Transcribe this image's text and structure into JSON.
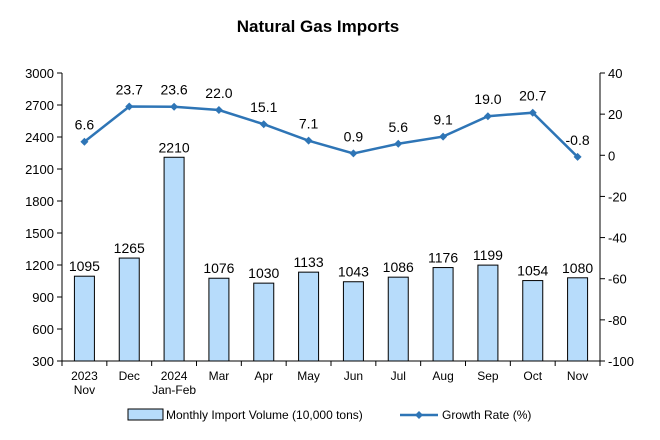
{
  "chart_data": {
    "type": "bar+line",
    "title": "Natural Gas Imports",
    "categories": [
      [
        "2023",
        "Nov"
      ],
      [
        "Dec"
      ],
      [
        "2024",
        "Jan-Feb"
      ],
      [
        "Mar"
      ],
      [
        "Apr"
      ],
      [
        "May"
      ],
      [
        "Jun"
      ],
      [
        "Jul"
      ],
      [
        "Aug"
      ],
      [
        "Sep"
      ],
      [
        "Oct"
      ],
      [
        "Nov"
      ]
    ],
    "series": [
      {
        "name": "Monthly Import Volume (10,000 tons)",
        "type": "bar",
        "axis": "left",
        "values": [
          1095,
          1265,
          2210,
          1076,
          1030,
          1133,
          1043,
          1086,
          1176,
          1199,
          1054,
          1080
        ]
      },
      {
        "name": "Growth Rate (%)",
        "type": "line",
        "axis": "right",
        "values": [
          6.6,
          23.7,
          23.6,
          22.0,
          15.1,
          7.1,
          0.9,
          5.6,
          9.1,
          19.0,
          20.7,
          -0.8
        ]
      }
    ],
    "y_left": {
      "min": 300,
      "max": 3000,
      "step": 300
    },
    "y_right": {
      "min": -100,
      "max": 40,
      "step": 20
    },
    "legend_position": "bottom",
    "colors": {
      "bar_fill": "#b7dcfb",
      "bar_stroke": "#000000",
      "line": "#2e75b6"
    }
  }
}
